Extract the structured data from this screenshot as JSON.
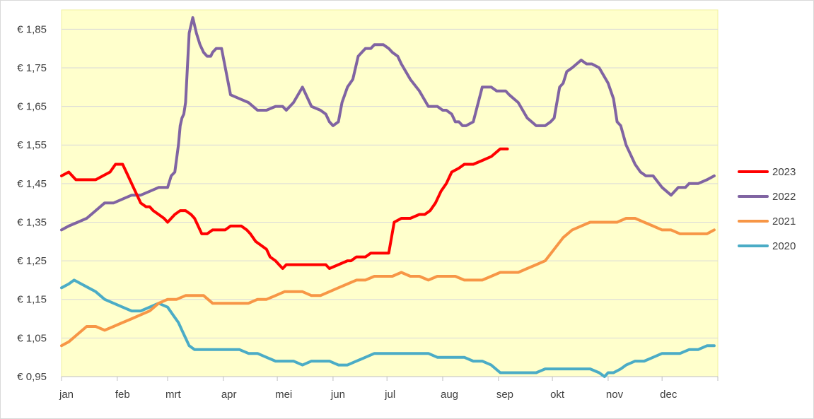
{
  "chart_data": {
    "type": "line",
    "title": "",
    "xlabel": "",
    "ylabel": "",
    "ylim": [
      0.95,
      1.9
    ],
    "x_unit": "day of year",
    "x_ticks": [
      {
        "label": "jan",
        "day": 1
      },
      {
        "label": "feb",
        "day": 32
      },
      {
        "label": "mrt",
        "day": 60
      },
      {
        "label": "apr",
        "day": 91
      },
      {
        "label": "mei",
        "day": 121
      },
      {
        "label": "jun",
        "day": 152
      },
      {
        "label": "jul",
        "day": 182
      },
      {
        "label": "aug",
        "day": 213
      },
      {
        "label": "sep",
        "day": 244
      },
      {
        "label": "okt",
        "day": 274
      },
      {
        "label": "nov",
        "day": 305
      },
      {
        "label": "dec",
        "day": 335
      }
    ],
    "y_ticks": [
      "€ 0,95",
      "€ 1,05",
      "€ 1,15",
      "€ 1,25",
      "€ 1,35",
      "€ 1,45",
      "€ 1,55",
      "€ 1,65",
      "€ 1,75",
      "€ 1,85"
    ],
    "y_tick_values": [
      0.95,
      1.05,
      1.15,
      1.25,
      1.35,
      1.45,
      1.55,
      1.65,
      1.75,
      1.85
    ],
    "grid": true,
    "legend_position": "right",
    "plot_background": "#ffffcc",
    "series": [
      {
        "name": "2023",
        "color": "#ff0000",
        "x": [
          1,
          5,
          9,
          12,
          16,
          20,
          24,
          28,
          31,
          35,
          38,
          41,
          43,
          45,
          48,
          50,
          52,
          55,
          58,
          60,
          62,
          64,
          67,
          70,
          73,
          75,
          77,
          79,
          82,
          85,
          88,
          90,
          92,
          95,
          98,
          101,
          104,
          106,
          109,
          112,
          115,
          117,
          120,
          122,
          124,
          126,
          130,
          135,
          140,
          145,
          148,
          150,
          155,
          160,
          162,
          165,
          170,
          173,
          175,
          177,
          179,
          181,
          183,
          186,
          190,
          195,
          200,
          203,
          206,
          209,
          212,
          215,
          218,
          222,
          225,
          230,
          235,
          240,
          245,
          249
        ],
        "values": [
          1.47,
          1.48,
          1.46,
          1.46,
          1.46,
          1.46,
          1.47,
          1.48,
          1.5,
          1.5,
          1.47,
          1.44,
          1.42,
          1.4,
          1.39,
          1.39,
          1.38,
          1.37,
          1.36,
          1.35,
          1.36,
          1.37,
          1.38,
          1.38,
          1.37,
          1.36,
          1.34,
          1.32,
          1.32,
          1.33,
          1.33,
          1.33,
          1.33,
          1.34,
          1.34,
          1.34,
          1.33,
          1.32,
          1.3,
          1.29,
          1.28,
          1.26,
          1.25,
          1.24,
          1.23,
          1.24,
          1.24,
          1.24,
          1.24,
          1.24,
          1.24,
          1.23,
          1.24,
          1.25,
          1.25,
          1.26,
          1.26,
          1.27,
          1.27,
          1.27,
          1.27,
          1.27,
          1.27,
          1.35,
          1.36,
          1.36,
          1.37,
          1.37,
          1.38,
          1.4,
          1.43,
          1.45,
          1.48,
          1.49,
          1.5,
          1.5,
          1.51,
          1.52,
          1.54,
          1.54
        ]
      },
      {
        "name": "2022",
        "color": "#8064a2",
        "x": [
          1,
          5,
          10,
          15,
          20,
          25,
          30,
          35,
          40,
          45,
          50,
          55,
          58,
          60,
          62,
          64,
          66,
          67,
          68,
          69,
          70,
          72,
          74,
          76,
          78,
          80,
          82,
          83,
          84,
          85,
          87,
          90,
          95,
          100,
          105,
          110,
          115,
          120,
          122,
          124,
          126,
          130,
          135,
          140,
          145,
          148,
          150,
          152,
          155,
          157,
          160,
          163,
          166,
          170,
          173,
          175,
          177,
          180,
          183,
          185,
          188,
          190,
          195,
          200,
          205,
          210,
          213,
          215,
          218,
          220,
          222,
          224,
          226,
          230,
          235,
          240,
          243,
          245,
          248,
          250,
          255,
          260,
          265,
          270,
          273,
          275,
          278,
          280,
          282,
          285,
          290,
          293,
          296,
          300,
          305,
          308,
          310,
          312,
          315,
          318,
          320,
          323,
          326,
          330,
          335,
          340,
          344,
          346,
          348,
          350,
          355,
          360,
          364
        ],
        "values": [
          1.33,
          1.34,
          1.35,
          1.36,
          1.38,
          1.4,
          1.4,
          1.41,
          1.42,
          1.42,
          1.43,
          1.44,
          1.44,
          1.44,
          1.47,
          1.48,
          1.55,
          1.6,
          1.62,
          1.63,
          1.66,
          1.84,
          1.88,
          1.84,
          1.81,
          1.79,
          1.78,
          1.78,
          1.78,
          1.79,
          1.8,
          1.8,
          1.68,
          1.67,
          1.66,
          1.64,
          1.64,
          1.65,
          1.65,
          1.65,
          1.64,
          1.66,
          1.7,
          1.65,
          1.64,
          1.63,
          1.61,
          1.6,
          1.61,
          1.66,
          1.7,
          1.72,
          1.78,
          1.8,
          1.8,
          1.81,
          1.81,
          1.81,
          1.8,
          1.79,
          1.78,
          1.76,
          1.72,
          1.69,
          1.65,
          1.65,
          1.64,
          1.64,
          1.63,
          1.61,
          1.61,
          1.6,
          1.6,
          1.61,
          1.7,
          1.7,
          1.69,
          1.69,
          1.69,
          1.68,
          1.66,
          1.62,
          1.6,
          1.6,
          1.61,
          1.62,
          1.7,
          1.71,
          1.74,
          1.75,
          1.77,
          1.76,
          1.76,
          1.75,
          1.71,
          1.67,
          1.61,
          1.6,
          1.55,
          1.52,
          1.5,
          1.48,
          1.47,
          1.47,
          1.44,
          1.42,
          1.44,
          1.44,
          1.44,
          1.45,
          1.45,
          1.46,
          1.47
        ]
      },
      {
        "name": "2021",
        "color": "#f79646",
        "x": [
          1,
          5,
          10,
          15,
          20,
          25,
          30,
          35,
          40,
          45,
          50,
          55,
          60,
          65,
          70,
          75,
          80,
          85,
          90,
          95,
          100,
          105,
          110,
          115,
          120,
          125,
          130,
          135,
          140,
          145,
          150,
          155,
          160,
          165,
          170,
          175,
          180,
          185,
          190,
          195,
          200,
          205,
          210,
          215,
          220,
          225,
          230,
          235,
          240,
          245,
          250,
          255,
          260,
          265,
          270,
          275,
          280,
          285,
          290,
          295,
          300,
          305,
          310,
          315,
          320,
          325,
          330,
          335,
          340,
          345,
          350,
          355,
          360,
          364
        ],
        "values": [
          1.03,
          1.04,
          1.06,
          1.08,
          1.08,
          1.07,
          1.08,
          1.09,
          1.1,
          1.11,
          1.12,
          1.14,
          1.15,
          1.15,
          1.16,
          1.16,
          1.16,
          1.14,
          1.14,
          1.14,
          1.14,
          1.14,
          1.15,
          1.15,
          1.16,
          1.17,
          1.17,
          1.17,
          1.16,
          1.16,
          1.17,
          1.18,
          1.19,
          1.2,
          1.2,
          1.21,
          1.21,
          1.21,
          1.22,
          1.21,
          1.21,
          1.2,
          1.21,
          1.21,
          1.21,
          1.2,
          1.2,
          1.2,
          1.21,
          1.22,
          1.22,
          1.22,
          1.23,
          1.24,
          1.25,
          1.28,
          1.31,
          1.33,
          1.34,
          1.35,
          1.35,
          1.35,
          1.35,
          1.36,
          1.36,
          1.35,
          1.34,
          1.33,
          1.33,
          1.32,
          1.32,
          1.32,
          1.32,
          1.33
        ]
      },
      {
        "name": "2020",
        "color": "#4bacc6",
        "x": [
          1,
          5,
          8,
          12,
          16,
          20,
          25,
          30,
          35,
          40,
          45,
          50,
          55,
          60,
          63,
          66,
          68,
          70,
          72,
          75,
          80,
          85,
          90,
          95,
          100,
          105,
          110,
          115,
          120,
          125,
          130,
          135,
          140,
          145,
          150,
          155,
          160,
          165,
          170,
          175,
          180,
          185,
          190,
          195,
          200,
          205,
          210,
          215,
          220,
          225,
          230,
          235,
          240,
          245,
          250,
          253,
          255,
          258,
          260,
          265,
          270,
          275,
          280,
          285,
          290,
          295,
          300,
          303,
          305,
          308,
          312,
          315,
          320,
          325,
          330,
          335,
          340,
          345,
          350,
          355,
          360,
          364
        ],
        "values": [
          1.18,
          1.19,
          1.2,
          1.19,
          1.18,
          1.17,
          1.15,
          1.14,
          1.13,
          1.12,
          1.12,
          1.13,
          1.14,
          1.13,
          1.11,
          1.09,
          1.07,
          1.05,
          1.03,
          1.02,
          1.02,
          1.02,
          1.02,
          1.02,
          1.02,
          1.01,
          1.01,
          1.0,
          0.99,
          0.99,
          0.99,
          0.98,
          0.99,
          0.99,
          0.99,
          0.98,
          0.98,
          0.99,
          1.0,
          1.01,
          1.01,
          1.01,
          1.01,
          1.01,
          1.01,
          1.01,
          1.0,
          1.0,
          1.0,
          1.0,
          0.99,
          0.99,
          0.98,
          0.96,
          0.96,
          0.96,
          0.96,
          0.96,
          0.96,
          0.96,
          0.97,
          0.97,
          0.97,
          0.97,
          0.97,
          0.97,
          0.96,
          0.95,
          0.96,
          0.96,
          0.97,
          0.98,
          0.99,
          0.99,
          1.0,
          1.01,
          1.01,
          1.01,
          1.02,
          1.02,
          1.03,
          1.03
        ]
      }
    ]
  }
}
